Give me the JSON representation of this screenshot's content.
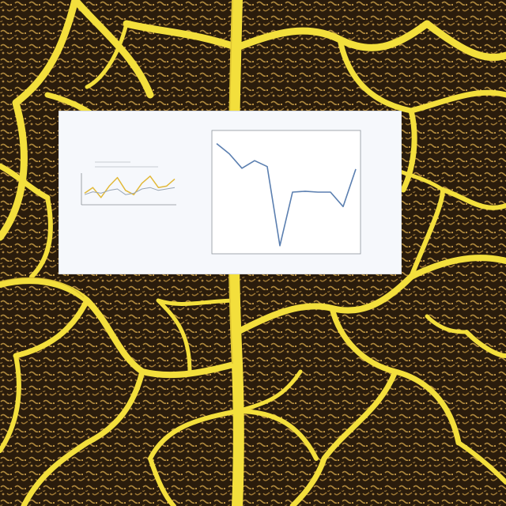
{
  "colors": {
    "vein": "#f3df3c",
    "vein_dark": "#c9a92a",
    "ground": "#2a1c0c",
    "speckle": "#b08a3e",
    "card": "#f6f8fc",
    "main_line": "#5b7fb0",
    "inset_gold": "#e2b939",
    "inset_grey": "#9aa6b4"
  },
  "chart_data": [
    {
      "type": "line",
      "title": "",
      "xlabel": "",
      "ylabel": "",
      "x": [
        1,
        2,
        3,
        4,
        5,
        6,
        7,
        8,
        9,
        10,
        11,
        12
      ],
      "series": [
        {
          "values": [
            1.62,
            1.5,
            1.33,
            1.42,
            1.35,
            0.42,
            1.05,
            1.06,
            1.05,
            1.05,
            0.88,
            1.32
          ]
        }
      ],
      "xlim": [
        1,
        12
      ],
      "ylim": [
        0.4,
        1.7
      ],
      "grid": false,
      "legend": "none"
    },
    {
      "type": "line",
      "title": "",
      "xlabel": "",
      "ylabel": "",
      "x": [
        1,
        2,
        3,
        4,
        5,
        6,
        7,
        8,
        9,
        10,
        11,
        12
      ],
      "series": [
        {
          "values": [
            0.35,
            0.55,
            0.2,
            0.6,
            0.9,
            0.45,
            0.3,
            0.7,
            0.95,
            0.55,
            0.6,
            0.85
          ]
        },
        {
          "values": [
            0.3,
            0.4,
            0.35,
            0.45,
            0.5,
            0.3,
            0.35,
            0.5,
            0.55,
            0.45,
            0.5,
            0.55
          ]
        }
      ],
      "ylim": [
        0,
        1
      ],
      "grid": false,
      "legend": "top"
    }
  ]
}
